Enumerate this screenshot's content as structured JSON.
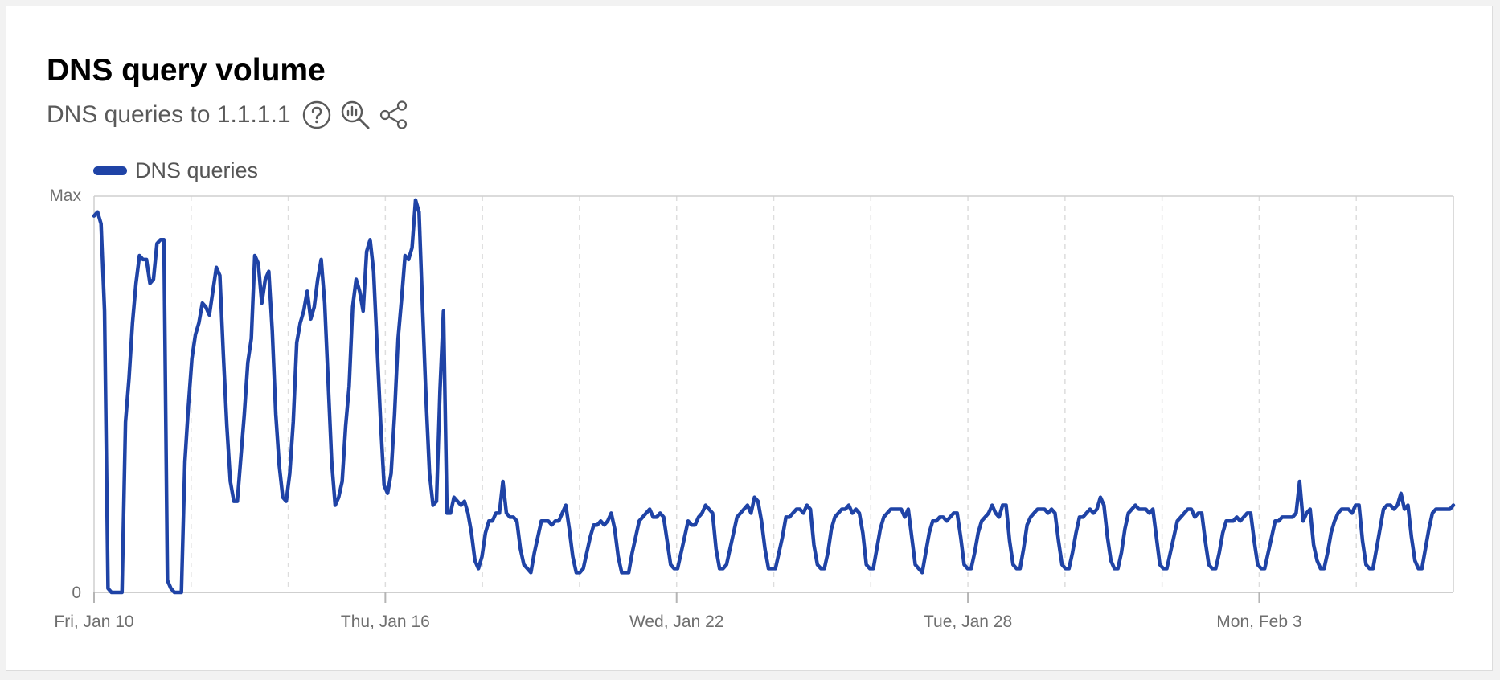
{
  "card": {
    "title": "DNS query volume",
    "subtitle": "DNS queries to 1.1.1.1",
    "icons": [
      "help-icon",
      "explore-data-icon",
      "share-icon"
    ]
  },
  "colors": {
    "series": "#1f43a6",
    "grid": "#dddddd",
    "axis": "#cfcfcf",
    "text": "#6f6f6f"
  },
  "chart_data": {
    "type": "line",
    "title": "DNS query volume",
    "subtitle": "DNS queries to 1.1.1.1",
    "x_start": "2025-01-10",
    "x_end": "2025-02-07",
    "x_ticks": [
      "Fri, Jan 10",
      "Thu, Jan 16",
      "Wed, Jan 22",
      "Tue, Jan 28",
      "Mon, Feb 3"
    ],
    "y_ticks": [
      "0",
      "Max"
    ],
    "ylim": [
      0,
      1
    ],
    "grid": "vertical dashed, every 2 days",
    "legend": "top-left",
    "series": [
      {
        "name": "DNS queries",
        "color": "#1f43a6",
        "values": [
          0.95,
          0.96,
          0.93,
          0.71,
          0.01,
          0.0,
          0.0,
          0.0,
          0.0,
          0.43,
          0.54,
          0.68,
          0.78,
          0.85,
          0.84,
          0.84,
          0.78,
          0.79,
          0.88,
          0.89,
          0.89,
          0.03,
          0.01,
          0.0,
          0.0,
          0.0,
          0.33,
          0.47,
          0.59,
          0.65,
          0.68,
          0.73,
          0.72,
          0.7,
          0.76,
          0.82,
          0.8,
          0.6,
          0.42,
          0.28,
          0.23,
          0.23,
          0.34,
          0.45,
          0.58,
          0.64,
          0.85,
          0.83,
          0.73,
          0.79,
          0.81,
          0.66,
          0.45,
          0.32,
          0.24,
          0.23,
          0.3,
          0.43,
          0.63,
          0.68,
          0.71,
          0.76,
          0.69,
          0.72,
          0.79,
          0.84,
          0.73,
          0.53,
          0.33,
          0.22,
          0.24,
          0.28,
          0.42,
          0.52,
          0.72,
          0.79,
          0.76,
          0.71,
          0.86,
          0.89,
          0.81,
          0.62,
          0.43,
          0.27,
          0.25,
          0.3,
          0.45,
          0.64,
          0.74,
          0.85,
          0.84,
          0.87,
          0.99,
          0.96,
          0.72,
          0.49,
          0.3,
          0.22,
          0.23,
          0.51,
          0.71,
          0.2,
          0.2,
          0.24,
          0.23,
          0.22,
          0.23,
          0.2,
          0.15,
          0.08,
          0.06,
          0.09,
          0.15,
          0.18,
          0.18,
          0.2,
          0.2,
          0.28,
          0.2,
          0.19,
          0.19,
          0.18,
          0.11,
          0.07,
          0.06,
          0.05,
          0.1,
          0.14,
          0.18,
          0.18,
          0.18,
          0.17,
          0.18,
          0.18,
          0.2,
          0.22,
          0.16,
          0.09,
          0.05,
          0.05,
          0.06,
          0.1,
          0.14,
          0.17,
          0.17,
          0.18,
          0.17,
          0.18,
          0.2,
          0.16,
          0.09,
          0.05,
          0.05,
          0.05,
          0.1,
          0.14,
          0.18,
          0.19,
          0.2,
          0.21,
          0.19,
          0.19,
          0.2,
          0.19,
          0.13,
          0.07,
          0.06,
          0.06,
          0.1,
          0.14,
          0.18,
          0.17,
          0.17,
          0.19,
          0.2,
          0.22,
          0.21,
          0.2,
          0.11,
          0.06,
          0.06,
          0.07,
          0.11,
          0.15,
          0.19,
          0.2,
          0.21,
          0.22,
          0.2,
          0.24,
          0.23,
          0.18,
          0.11,
          0.06,
          0.06,
          0.06,
          0.1,
          0.14,
          0.19,
          0.19,
          0.2,
          0.21,
          0.21,
          0.2,
          0.22,
          0.21,
          0.12,
          0.07,
          0.06,
          0.06,
          0.1,
          0.16,
          0.19,
          0.2,
          0.21,
          0.21,
          0.22,
          0.2,
          0.21,
          0.2,
          0.15,
          0.07,
          0.06,
          0.06,
          0.11,
          0.16,
          0.19,
          0.2,
          0.21,
          0.21,
          0.21,
          0.21,
          0.19,
          0.21,
          0.14,
          0.07,
          0.06,
          0.05,
          0.1,
          0.15,
          0.18,
          0.18,
          0.19,
          0.19,
          0.18,
          0.19,
          0.2,
          0.2,
          0.14,
          0.07,
          0.06,
          0.06,
          0.1,
          0.15,
          0.18,
          0.19,
          0.2,
          0.22,
          0.2,
          0.19,
          0.22,
          0.22,
          0.13,
          0.07,
          0.06,
          0.06,
          0.11,
          0.17,
          0.19,
          0.2,
          0.21,
          0.21,
          0.21,
          0.2,
          0.21,
          0.2,
          0.13,
          0.07,
          0.06,
          0.06,
          0.1,
          0.15,
          0.19,
          0.19,
          0.2,
          0.21,
          0.2,
          0.21,
          0.24,
          0.22,
          0.14,
          0.08,
          0.06,
          0.06,
          0.1,
          0.16,
          0.2,
          0.21,
          0.22,
          0.21,
          0.21,
          0.21,
          0.2,
          0.21,
          0.14,
          0.07,
          0.06,
          0.06,
          0.1,
          0.14,
          0.18,
          0.19,
          0.2,
          0.21,
          0.21,
          0.19,
          0.2,
          0.2,
          0.13,
          0.07,
          0.06,
          0.06,
          0.1,
          0.15,
          0.18,
          0.18,
          0.18,
          0.19,
          0.18,
          0.19,
          0.2,
          0.2,
          0.13,
          0.07,
          0.06,
          0.06,
          0.1,
          0.14,
          0.18,
          0.18,
          0.19,
          0.19,
          0.19,
          0.19,
          0.2,
          0.28,
          0.18,
          0.2,
          0.21,
          0.12,
          0.08,
          0.06,
          0.06,
          0.1,
          0.15,
          0.18,
          0.2,
          0.21,
          0.21,
          0.21,
          0.2,
          0.22,
          0.22,
          0.13,
          0.07,
          0.06,
          0.06,
          0.11,
          0.16,
          0.21,
          0.22,
          0.22,
          0.21,
          0.22,
          0.25,
          0.21,
          0.22,
          0.14,
          0.08,
          0.06,
          0.06,
          0.11,
          0.16,
          0.2,
          0.21,
          0.21,
          0.21,
          0.21,
          0.21,
          0.22
        ]
      }
    ]
  }
}
